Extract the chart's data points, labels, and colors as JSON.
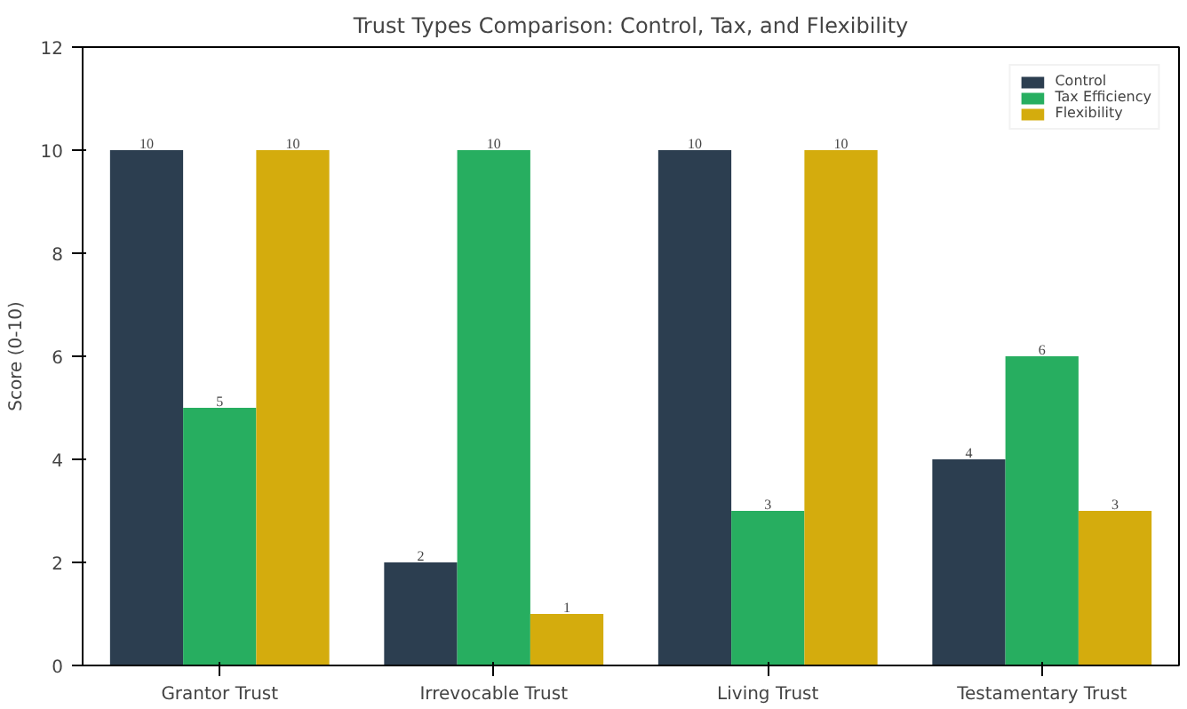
{
  "chart_data": {
    "type": "bar",
    "title": "Trust Types Comparison: Control, Tax, and Flexibility",
    "ylabel": "Score (0-10)",
    "categories": [
      "Grantor Trust",
      "Irrevocable Trust",
      "Living Trust",
      "Testamentary Trust"
    ],
    "series": [
      {
        "name": "Control",
        "color": "#2c3e50",
        "values": [
          10,
          2,
          10,
          4
        ]
      },
      {
        "name": "Tax Efficiency",
        "color": "#27ae60",
        "values": [
          5,
          10,
          3,
          6
        ]
      },
      {
        "name": "Flexibility",
        "color": "#d4ac0d",
        "values": [
          10,
          1,
          10,
          3
        ]
      }
    ],
    "ylim": [
      0,
      12
    ],
    "yticks": [
      0,
      2,
      4,
      6,
      8,
      10,
      12
    ],
    "grid": false,
    "legend": "top right",
    "data_labels": true
  }
}
